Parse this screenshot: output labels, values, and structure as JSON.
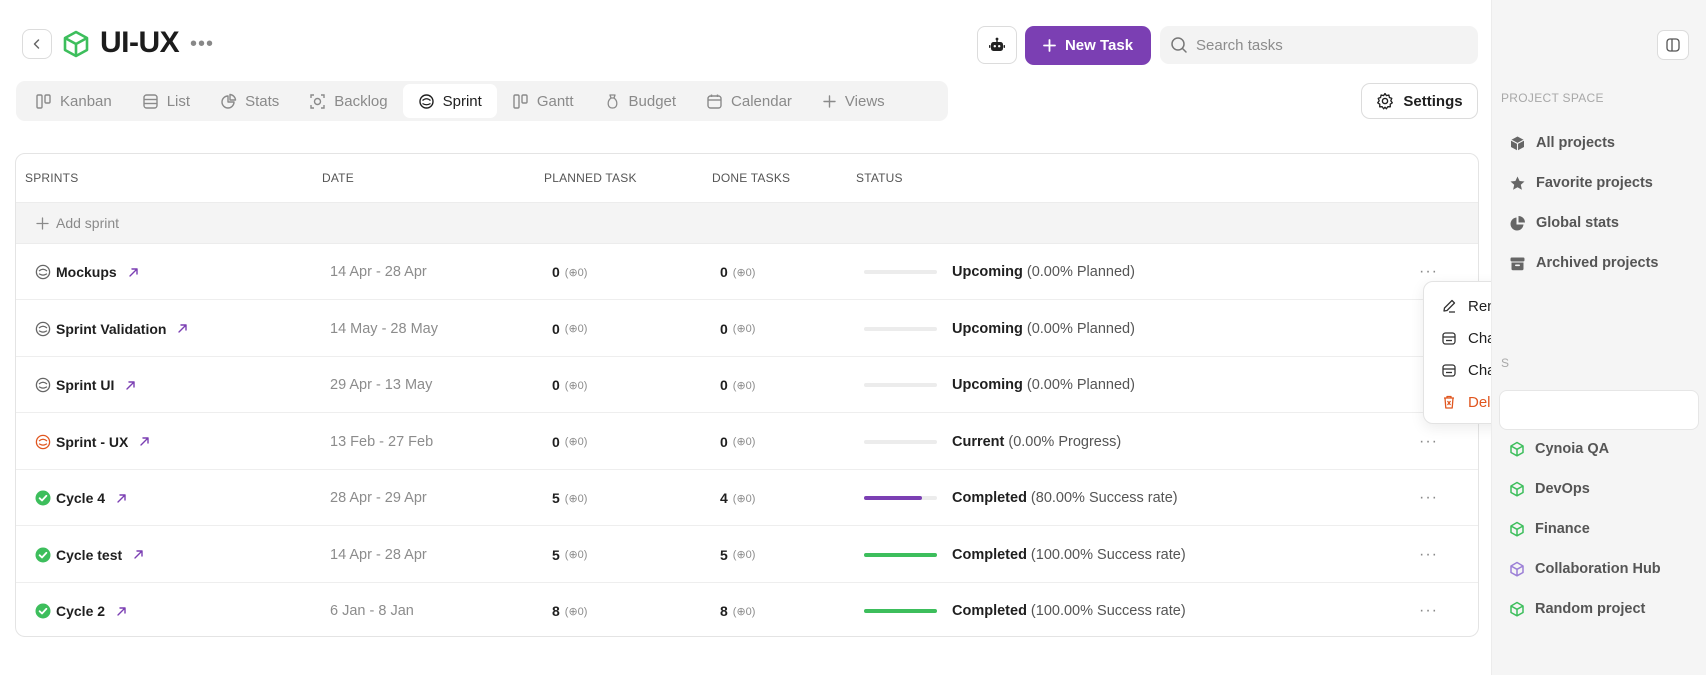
{
  "header": {
    "project_title": "UI-UX",
    "new_task_label": "New Task",
    "search_placeholder": "Search tasks",
    "accent_color": "#7b3fb3"
  },
  "tabs": [
    {
      "label": "Kanban",
      "icon": "kanban-icon"
    },
    {
      "label": "List",
      "icon": "list-icon"
    },
    {
      "label": "Stats",
      "icon": "stats-icon"
    },
    {
      "label": "Backlog",
      "icon": "backlog-icon"
    },
    {
      "label": "Sprint",
      "icon": "sprint-icon",
      "active": true
    },
    {
      "label": "Gantt",
      "icon": "gantt-icon"
    },
    {
      "label": "Budget",
      "icon": "budget-icon"
    },
    {
      "label": "Calendar",
      "icon": "calendar-icon"
    },
    {
      "label": "Views",
      "icon": "plus-icon"
    }
  ],
  "settings_label": "Settings",
  "table": {
    "columns": [
      "SPRINTS",
      "DATE",
      "PLANNED TASK",
      "DONE TASKS",
      "STATUS"
    ],
    "add_sprint_label": "Add sprint",
    "rows": [
      {
        "name": "Mockups",
        "date": "14 Apr - 28 Apr",
        "planned": "0",
        "planned_sub": "(⊕0)",
        "done": "0",
        "done_sub": "(⊕0)",
        "progress": 0,
        "bar_color": "#7b3fb3",
        "status": "Upcoming",
        "status_detail": "(0.00% Planned)",
        "state": "upcoming"
      },
      {
        "name": "Sprint Validation",
        "date": "14 May - 28 May",
        "planned": "0",
        "planned_sub": "(⊕0)",
        "done": "0",
        "done_sub": "(⊕0)",
        "progress": 0,
        "bar_color": "#7b3fb3",
        "status": "Upcoming",
        "status_detail": "(0.00% Planned)",
        "state": "upcoming"
      },
      {
        "name": "Sprint UI",
        "date": "29 Apr - 13 May",
        "planned": "0",
        "planned_sub": "(⊕0)",
        "done": "0",
        "done_sub": "(⊕0)",
        "progress": 0,
        "bar_color": "#7b3fb3",
        "status": "Upcoming",
        "status_detail": "(0.00% Planned)",
        "state": "upcoming"
      },
      {
        "name": "Sprint - UX",
        "date": "13 Feb - 27 Feb",
        "planned": "0",
        "planned_sub": "(⊕0)",
        "done": "0",
        "done_sub": "(⊕0)",
        "progress": 0,
        "bar_color": "#7b3fb3",
        "status": "Current",
        "status_detail": "(0.00% Progress)",
        "state": "current"
      },
      {
        "name": "Cycle 4",
        "date": "28 Apr - 29 Apr",
        "planned": "5",
        "planned_sub": "(⊕0)",
        "done": "4",
        "done_sub": "(⊕0)",
        "progress": 0.8,
        "bar_color": "#7b3fb3",
        "status": "Completed",
        "status_detail": "(80.00% Success rate)",
        "state": "completed"
      },
      {
        "name": "Cycle test",
        "date": "14 Apr - 28 Apr",
        "planned": "5",
        "planned_sub": "(⊕0)",
        "done": "5",
        "done_sub": "(⊕0)",
        "progress": 1.0,
        "bar_color": "#3dbe5c",
        "status": "Completed",
        "status_detail": "(100.00% Success rate)",
        "state": "completed"
      },
      {
        "name": "Cycle 2",
        "date": "6 Jan - 8 Jan",
        "planned": "8",
        "planned_sub": "(⊕0)",
        "done": "8",
        "done_sub": "(⊕0)",
        "progress": 1.0,
        "bar_color": "#3dbe5c",
        "status": "Completed",
        "status_detail": "(100.00% Success rate)",
        "state": "completed"
      }
    ]
  },
  "context_menu": {
    "items": [
      {
        "label": "Rename sprint",
        "icon": "pencil-icon"
      },
      {
        "label": "Change start date",
        "icon": "calendar-icon"
      },
      {
        "label": "Change end date",
        "icon": "calendar-icon"
      },
      {
        "label": "Delete",
        "icon": "trash-icon",
        "danger": true
      }
    ],
    "danger_color": "#e0561f"
  },
  "sidebar": {
    "section_title": "PROJECT SPACE",
    "nav": [
      {
        "label": "All projects",
        "icon": "cube-icon"
      },
      {
        "label": "Favorite projects",
        "icon": "star-icon"
      },
      {
        "label": "Global stats",
        "icon": "pie-chart-icon"
      },
      {
        "label": "Archived projects",
        "icon": "archive-icon"
      }
    ],
    "projects_heading_fragment": "S",
    "projects": [
      {
        "label": "Cynoia QA",
        "color": "#3dbe5c"
      },
      {
        "label": "DevOps",
        "color": "#3dbe5c"
      },
      {
        "label": "Finance",
        "color": "#3dbe5c"
      },
      {
        "label": "Collaboration Hub",
        "color": "#9b7fd6"
      },
      {
        "label": "Random project",
        "color": "#3dbe5c"
      }
    ]
  }
}
